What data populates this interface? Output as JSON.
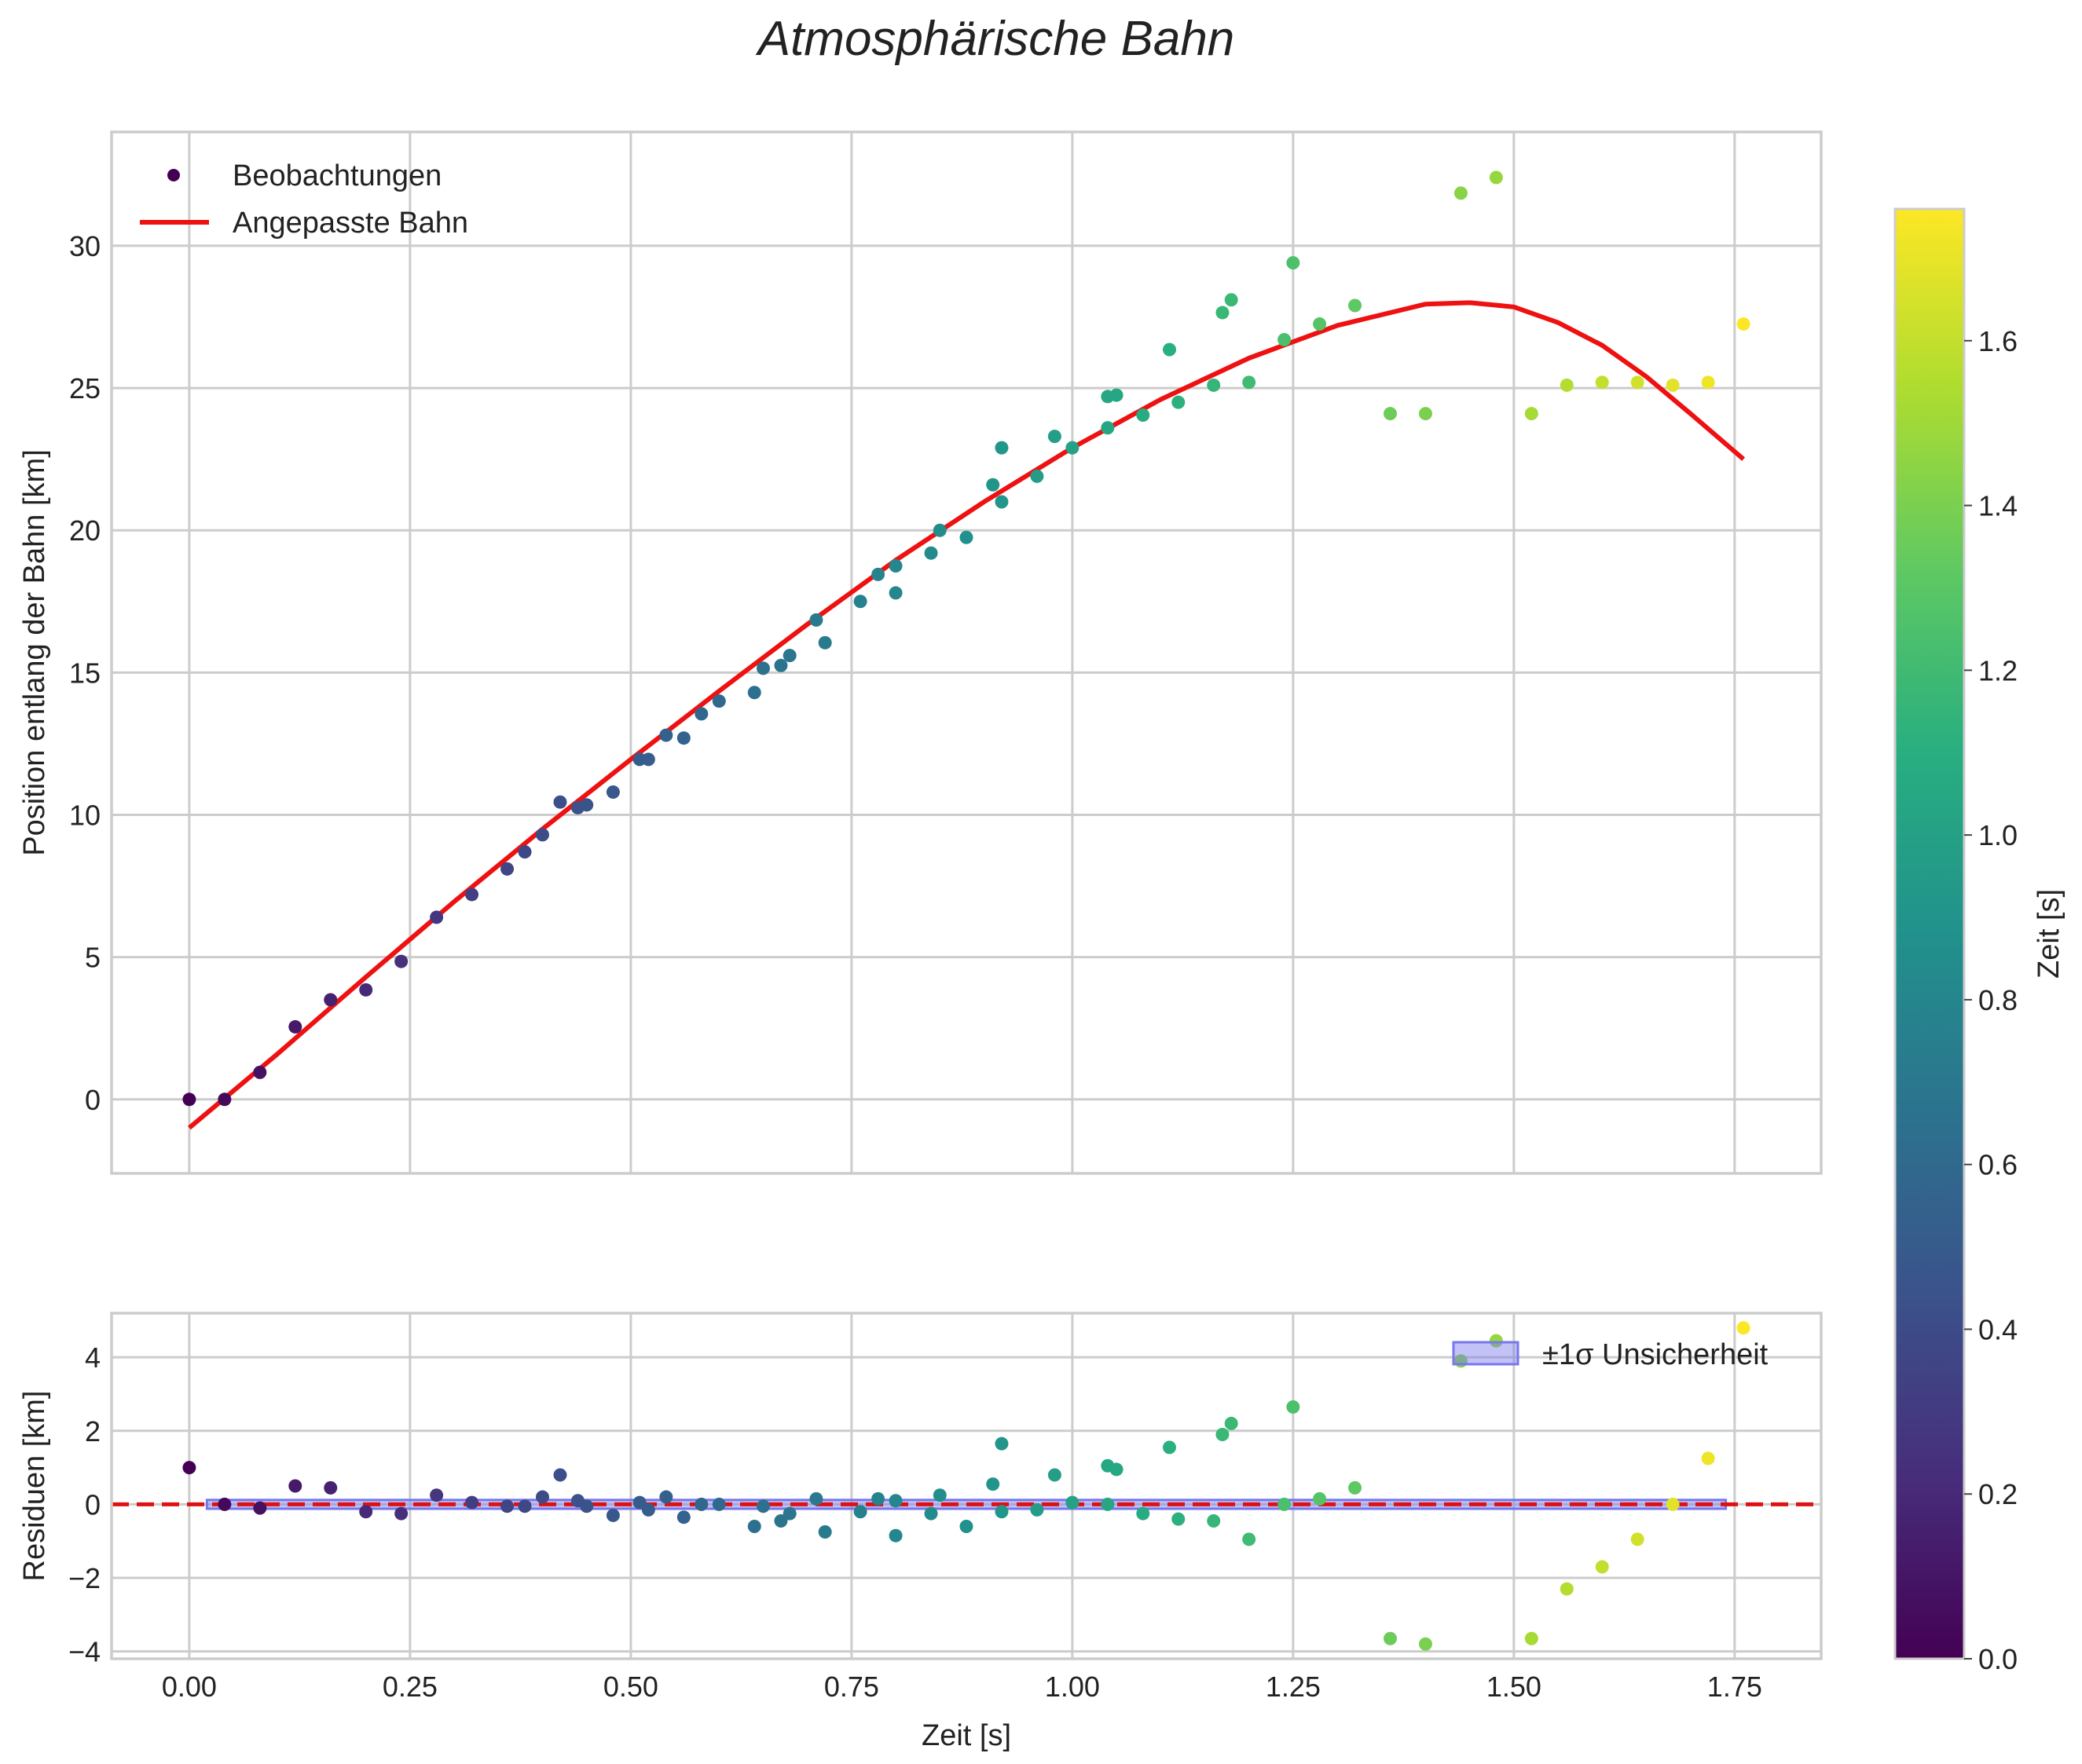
{
  "chart_data": {
    "type": "scatter",
    "title": "Atmosphärische Bahn",
    "colors": {
      "fit_line": "#ee1111",
      "zero_line": "#dd1111",
      "band_fill": "#7777ee",
      "grid": "#cccccc",
      "frame": "#cccccc",
      "text": "#222222"
    },
    "colormap": "viridis",
    "colorbar": {
      "label": "Zeit [s]",
      "range": [
        0.0,
        1.76
      ],
      "ticks": [
        0.0,
        0.2,
        0.4,
        0.6,
        0.8,
        1.0,
        1.2,
        1.4,
        1.6
      ],
      "tick_labels": [
        "0.0",
        "0.2",
        "0.4",
        "0.6",
        "0.8",
        "1.0",
        "1.2",
        "1.4",
        "1.6"
      ]
    },
    "x": {
      "label": "Zeit [s]",
      "range": [
        -0.088,
        1.848
      ],
      "ticks": [
        0.0,
        0.25,
        0.5,
        0.75,
        1.0,
        1.25,
        1.5,
        1.75
      ],
      "tick_labels": [
        "0.00",
        "0.25",
        "0.50",
        "0.75",
        "1.00",
        "1.25",
        "1.50",
        "1.75"
      ]
    },
    "top_panel": {
      "ylabel": "Position entlang der Bahn [km]",
      "ylim": [
        -2.6,
        34.0
      ],
      "yticks": [
        0,
        5,
        10,
        15,
        20,
        25,
        30
      ],
      "ytick_labels": [
        "0",
        "5",
        "10",
        "15",
        "20",
        "25",
        "30"
      ],
      "legend": {
        "position": "top-left",
        "scatter_label": "Beobachtungen",
        "line_label": "Angepasste Bahn"
      },
      "fit_curve": {
        "t": [
          0.0,
          0.1,
          0.2,
          0.3,
          0.4,
          0.5,
          0.6,
          0.7,
          0.8,
          0.9,
          1.0,
          1.1,
          1.2,
          1.3,
          1.4,
          1.45,
          1.5,
          1.55,
          1.6,
          1.65,
          1.7,
          1.76
        ],
        "y": [
          -1.0,
          1.6,
          4.3,
          6.95,
          9.5,
          11.95,
          14.35,
          16.7,
          18.95,
          21.0,
          22.9,
          24.6,
          26.05,
          27.2,
          27.95,
          28.0,
          27.85,
          27.3,
          26.5,
          25.4,
          24.1,
          22.5
        ]
      },
      "observations": {
        "t": [
          0.0,
          0.04,
          0.08,
          0.12,
          0.16,
          0.2,
          0.24,
          0.28,
          0.32,
          0.36,
          0.38,
          0.4,
          0.42,
          0.44,
          0.45,
          0.48,
          0.51,
          0.52,
          0.54,
          0.56,
          0.58,
          0.6,
          0.64,
          0.65,
          0.67,
          0.68,
          0.71,
          0.72,
          0.76,
          0.78,
          0.8,
          0.8,
          0.84,
          0.85,
          0.88,
          0.91,
          0.92,
          0.92,
          0.96,
          0.98,
          1.0,
          1.04,
          1.04,
          1.05,
          1.08,
          1.11,
          1.12,
          1.16,
          1.17,
          1.18,
          1.2,
          1.24,
          1.25,
          1.28,
          1.32,
          1.36,
          1.4,
          1.44,
          1.48,
          1.52,
          1.56,
          1.6,
          1.64,
          1.68,
          1.72,
          1.76
        ],
        "y": [
          0.0,
          0.0,
          0.95,
          2.55,
          3.5,
          3.85,
          4.85,
          6.4,
          7.2,
          8.1,
          8.7,
          9.3,
          10.45,
          10.25,
          10.35,
          10.8,
          11.95,
          11.95,
          12.8,
          12.7,
          13.55,
          14.0,
          14.3,
          15.15,
          15.25,
          15.6,
          16.85,
          16.05,
          17.5,
          18.45,
          18.75,
          17.8,
          19.2,
          20.0,
          19.75,
          21.6,
          21.0,
          22.9,
          21.9,
          23.3,
          22.9,
          23.6,
          24.7,
          24.75,
          24.05,
          26.35,
          24.5,
          25.1,
          27.65,
          28.1,
          25.2,
          26.7,
          29.4,
          27.25,
          27.9,
          24.1,
          24.1,
          31.85,
          32.4,
          24.1,
          25.1,
          25.2,
          25.2,
          25.1,
          25.2,
          27.25
        ]
      }
    },
    "bottom_panel": {
      "ylabel": "Residuen [km]",
      "ylim": [
        -4.2,
        5.2
      ],
      "yticks": [
        -4,
        -2,
        0,
        2,
        4
      ],
      "ytick_labels": [
        "−4",
        "−2",
        "0",
        "2",
        "4"
      ],
      "legend": {
        "position": "top-right",
        "band_label": "±1σ Unsicherheit"
      },
      "band": {
        "t_range": [
          0.02,
          1.74
        ],
        "half_width": 0.12
      },
      "residuals": [
        1.0,
        0.0,
        -0.1,
        0.5,
        0.45,
        -0.2,
        -0.25,
        0.25,
        0.05,
        -0.05,
        -0.05,
        0.2,
        0.8,
        0.1,
        -0.05,
        -0.3,
        0.05,
        -0.15,
        0.2,
        -0.35,
        0.0,
        0.0,
        -0.6,
        -0.05,
        -0.45,
        -0.25,
        0.15,
        -0.75,
        -0.2,
        0.15,
        0.1,
        -0.85,
        -0.25,
        0.25,
        -0.6,
        0.55,
        -0.2,
        1.65,
        -0.15,
        0.8,
        0.05,
        0.0,
        1.05,
        0.95,
        -0.25,
        1.55,
        -0.4,
        -0.45,
        1.9,
        2.2,
        -0.95,
        0.0,
        2.65,
        0.15,
        0.45,
        -3.65,
        -3.8,
        3.9,
        4.45,
        -3.65,
        -2.3,
        -1.7,
        -0.95,
        0.0,
        1.25,
        4.8
      ]
    }
  }
}
